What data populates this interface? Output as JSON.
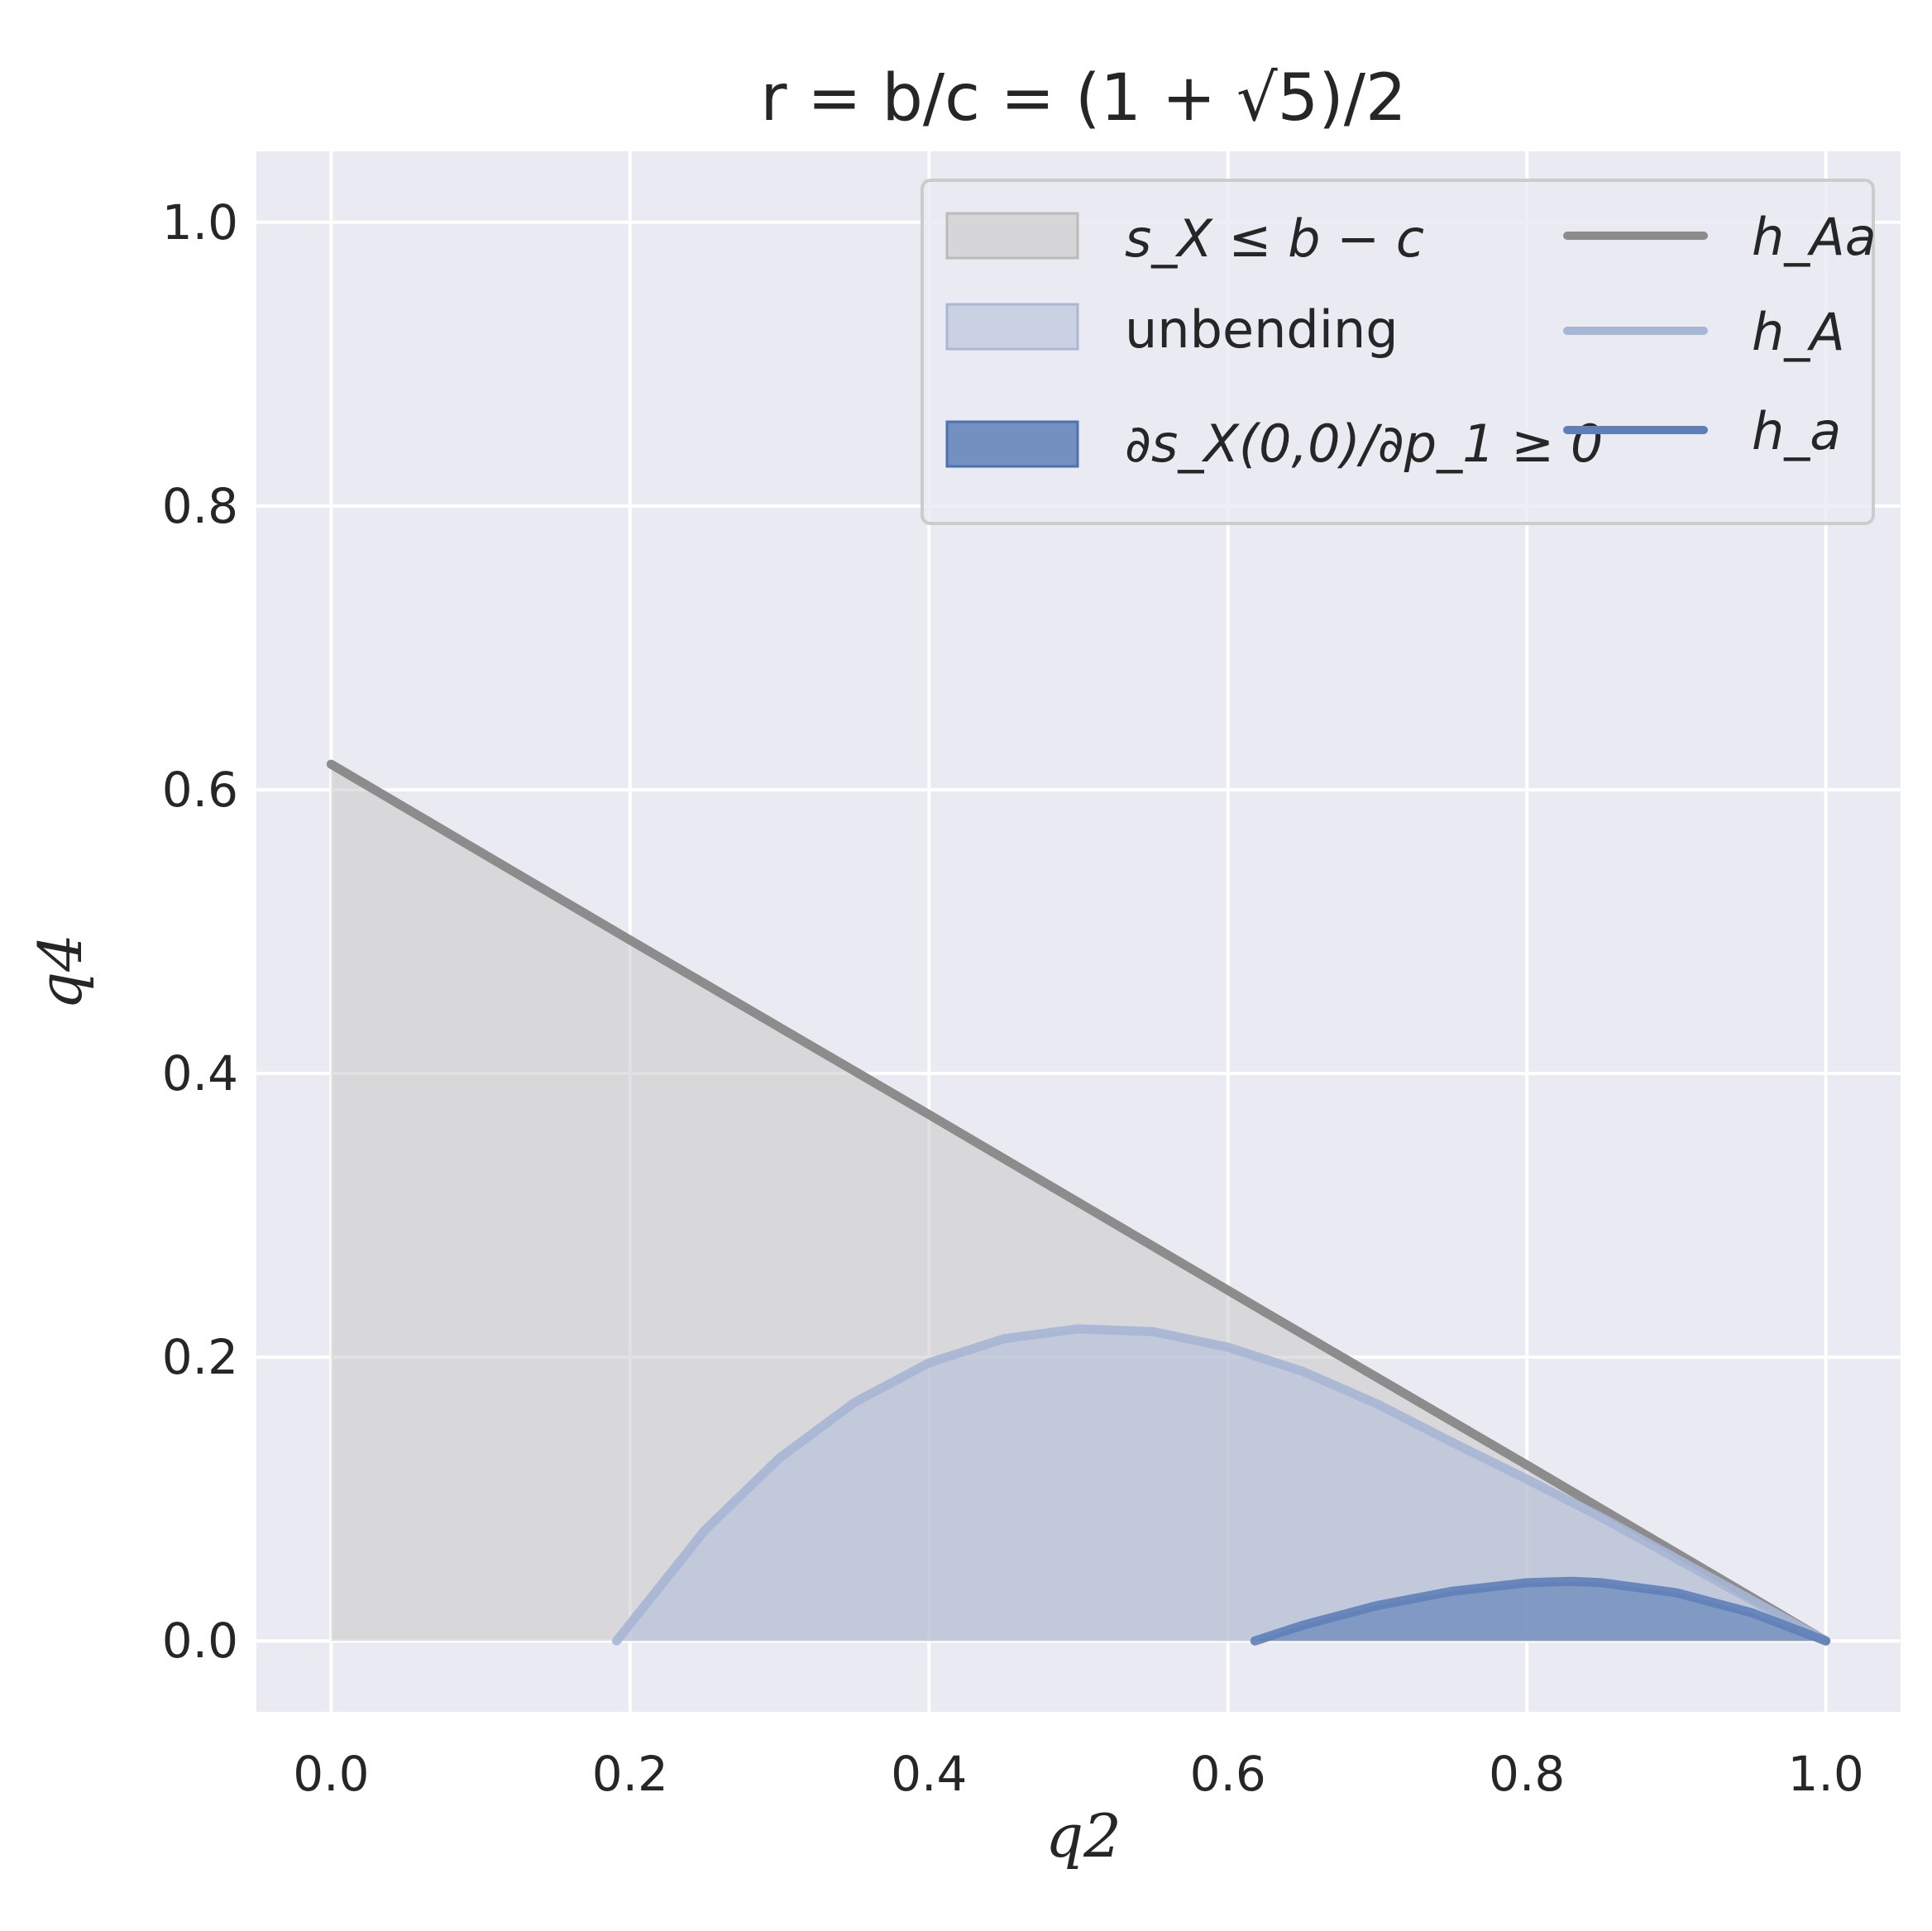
{
  "chart_data": {
    "type": "area",
    "title": "r = b/c = (1 + √5)/2",
    "xlabel": "q2",
    "ylabel": "q4",
    "xlim": [
      -0.05,
      1.05
    ],
    "ylim": [
      -0.05,
      1.05
    ],
    "grid": true,
    "xticks": [
      0.0,
      0.2,
      0.4,
      0.6,
      0.8,
      1.0
    ],
    "xtick_labels": [
      "0.0",
      "0.2",
      "0.4",
      "0.6",
      "0.8",
      "1.0"
    ],
    "yticks": [
      0.0,
      0.2,
      0.4,
      0.6,
      0.8,
      1.0
    ],
    "ytick_labels": [
      "0.0",
      "0.2",
      "0.4",
      "0.6",
      "0.8",
      "1.0"
    ],
    "legend_position": "upper-right",
    "regions": [
      {
        "name": "s_X ≤ b − c",
        "color": "#c8c8c8",
        "x": [
          0.0,
          0.2,
          0.4,
          0.618,
          0.8,
          1.0
        ],
        "y": [
          0.618,
          0.494,
          0.371,
          0.236,
          0.124,
          0.0
        ]
      },
      {
        "name": "unbending",
        "color": "#b4c0d8",
        "x": [
          0.191,
          0.25,
          0.3,
          0.35,
          0.4,
          0.45,
          0.5,
          0.55,
          0.6,
          0.65,
          0.7,
          0.75,
          0.8,
          0.85,
          0.9,
          0.95,
          1.0
        ],
        "y": [
          0.0,
          0.078,
          0.129,
          0.168,
          0.196,
          0.213,
          0.22,
          0.218,
          0.207,
          0.19,
          0.167,
          0.14,
          0.114,
          0.087,
          0.058,
          0.029,
          0.0
        ]
      },
      {
        "name": "∂s_X(0,0)/∂p_1 ≥ 0",
        "color": "#4c72b0",
        "x": [
          0.618,
          0.65,
          0.7,
          0.75,
          0.8,
          0.83,
          0.85,
          0.9,
          0.95,
          1.0
        ],
        "y": [
          0.0,
          0.011,
          0.025,
          0.035,
          0.041,
          0.042,
          0.041,
          0.034,
          0.02,
          0.0
        ]
      }
    ],
    "series": [
      {
        "name": "h_Aa",
        "color": "#8c8c8c",
        "x": [
          0.0,
          0.2,
          0.4,
          0.618,
          0.8,
          1.0
        ],
        "y": [
          0.618,
          0.494,
          0.371,
          0.236,
          0.124,
          0.0
        ]
      },
      {
        "name": "h_A",
        "color": "#a7b6d4",
        "x": [
          0.191,
          0.25,
          0.3,
          0.35,
          0.4,
          0.45,
          0.5,
          0.55,
          0.6,
          0.65,
          0.7,
          0.75,
          0.8,
          0.85,
          0.9,
          0.95,
          1.0
        ],
        "y": [
          0.0,
          0.078,
          0.129,
          0.168,
          0.196,
          0.213,
          0.22,
          0.218,
          0.207,
          0.19,
          0.167,
          0.14,
          0.114,
          0.087,
          0.058,
          0.029,
          0.0
        ]
      },
      {
        "name": "h_a",
        "color": "#5f7fb8",
        "x": [
          0.618,
          0.65,
          0.7,
          0.75,
          0.8,
          0.83,
          0.85,
          0.9,
          0.95,
          1.0
        ],
        "y": [
          0.0,
          0.011,
          0.025,
          0.035,
          0.041,
          0.042,
          0.041,
          0.034,
          0.02,
          0.0
        ]
      }
    ]
  },
  "colors": {
    "plot_background": "#eaeaf2",
    "grid": "#ffffff",
    "text": "#262626"
  }
}
